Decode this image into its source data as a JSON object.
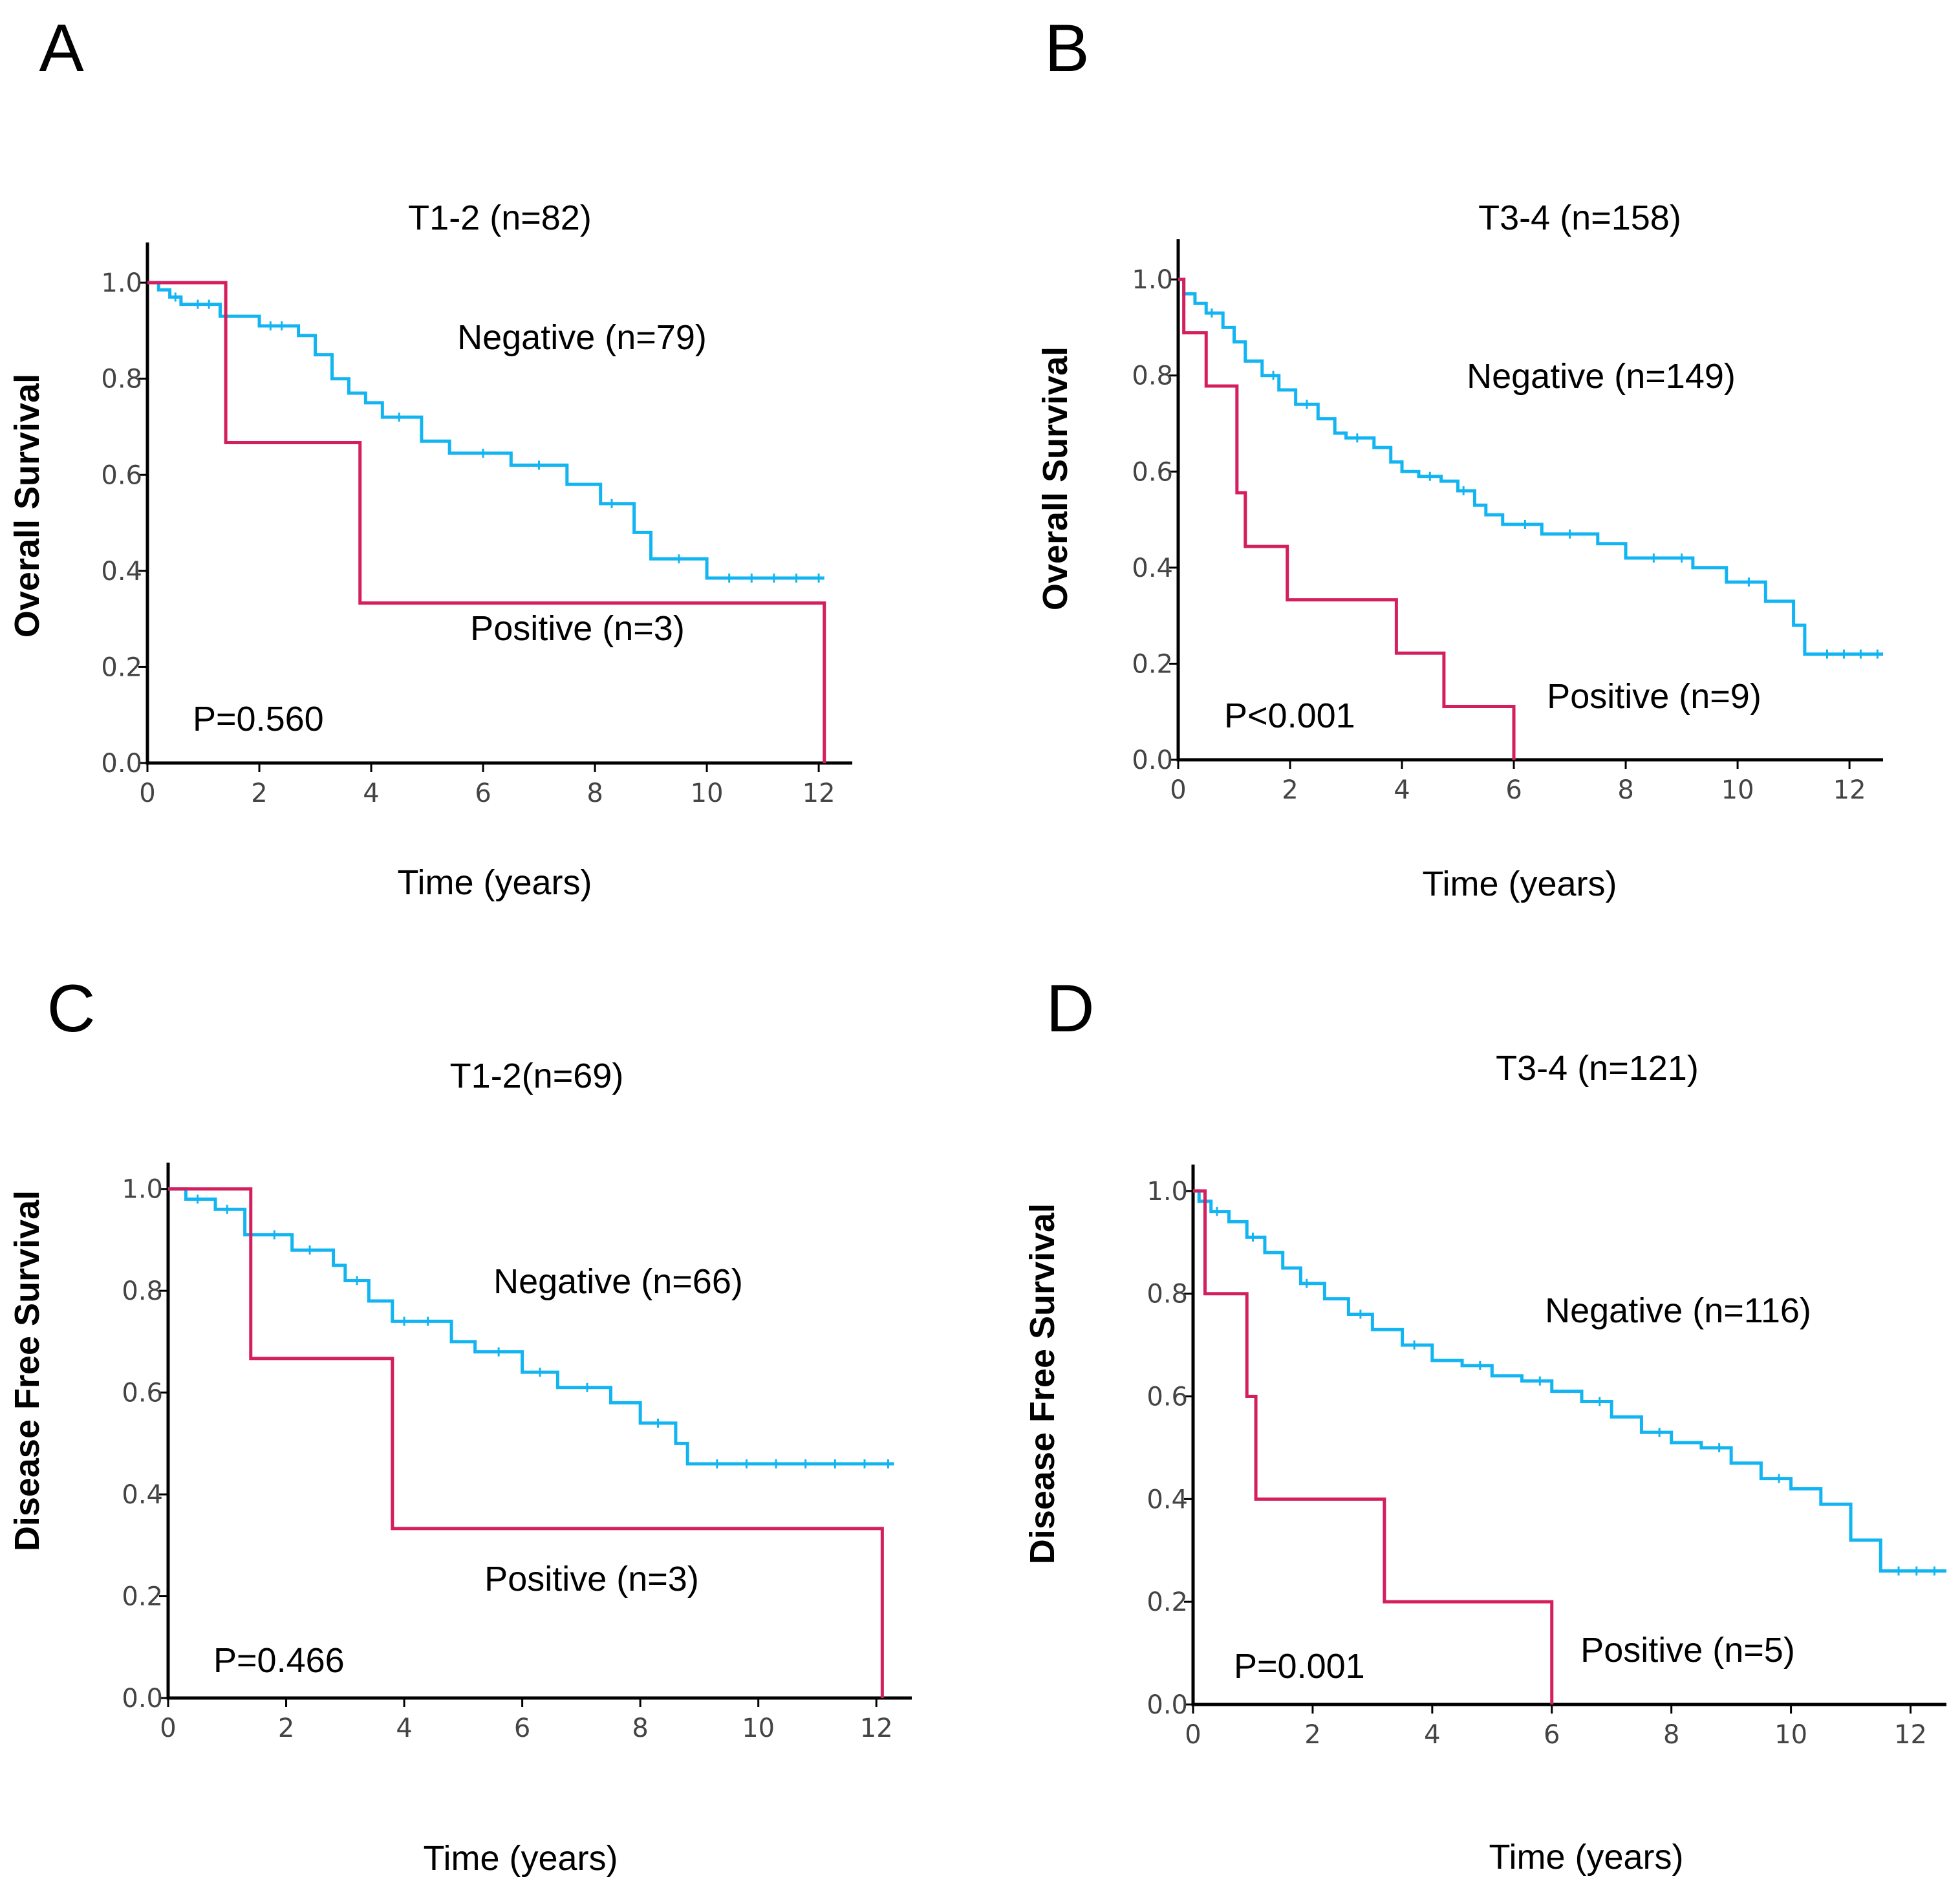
{
  "colors": {
    "negative": "#12b5f2",
    "positive": "#d41f5f"
  },
  "chart_data": [
    {
      "panel": "A",
      "type": "line",
      "title": "T1-2 (n=82)",
      "xlabel": "Time (years)",
      "ylabel": "Overall Survival",
      "xlim": [
        0,
        12.6
      ],
      "ylim": [
        0,
        1.05
      ],
      "xticks": [
        "0",
        "2",
        "4",
        "6",
        "8",
        "10",
        "12"
      ],
      "yticks": [
        "0.0",
        "0.2",
        "0.4",
        "0.6",
        "0.8",
        "1.0"
      ],
      "p_value": "P=0.560",
      "series": [
        {
          "name": "Negative (n=79)",
          "color_key": "negative",
          "x": [
            0,
            0.2,
            0.4,
            0.6,
            1.3,
            2.0,
            2.7,
            3.0,
            3.3,
            3.6,
            3.9,
            4.2,
            4.9,
            5.4,
            6.5,
            7.5,
            8.1,
            8.7,
            9.0,
            10.0,
            12.1
          ],
          "y": [
            1.0,
            0.985,
            0.97,
            0.955,
            0.93,
            0.91,
            0.89,
            0.85,
            0.8,
            0.77,
            0.75,
            0.72,
            0.67,
            0.645,
            0.62,
            0.58,
            0.54,
            0.48,
            0.425,
            0.385,
            0.385
          ],
          "censor_x": [
            0.5,
            0.9,
            1.1,
            2.2,
            2.4,
            4.5,
            6.0,
            7.0,
            8.3,
            9.5,
            10.4,
            10.8,
            11.2,
            11.6,
            12.0
          ]
        },
        {
          "name": "Positive (n=3)",
          "color_key": "positive",
          "x": [
            0,
            1.4,
            3.8,
            12.1
          ],
          "y": [
            1.0,
            0.667,
            0.333,
            0.0
          ]
        }
      ],
      "labels": {
        "negative": "Negative (n=79)",
        "positive": "Positive (n=3)"
      }
    },
    {
      "panel": "B",
      "type": "line",
      "title": "T3-4 (n=158)",
      "xlabel": "Time (years)",
      "ylabel": "Overall Survival",
      "xlim": [
        0,
        12.6
      ],
      "ylim": [
        0,
        1.05
      ],
      "xticks": [
        "0",
        "2",
        "4",
        "6",
        "8",
        "10",
        "12"
      ],
      "yticks": [
        "0.0",
        "0.2",
        "0.4",
        "0.6",
        "0.8",
        "1.0"
      ],
      "p_value": "P<0.001",
      "series": [
        {
          "name": "Negative (n=149)",
          "color_key": "negative",
          "x": [
            0,
            0.1,
            0.3,
            0.5,
            0.8,
            1.0,
            1.2,
            1.5,
            1.8,
            2.1,
            2.5,
            2.8,
            3.0,
            3.5,
            3.8,
            4.0,
            4.3,
            4.7,
            5.0,
            5.3,
            5.5,
            5.8,
            6.5,
            7.5,
            8.0,
            9.2,
            9.8,
            10.5,
            11.0,
            11.2,
            12.6
          ],
          "y": [
            1.0,
            0.97,
            0.95,
            0.93,
            0.9,
            0.87,
            0.83,
            0.8,
            0.77,
            0.74,
            0.71,
            0.68,
            0.67,
            0.65,
            0.62,
            0.6,
            0.59,
            0.58,
            0.56,
            0.53,
            0.51,
            0.49,
            0.47,
            0.45,
            0.42,
            0.4,
            0.37,
            0.33,
            0.28,
            0.22,
            0.22
          ],
          "censor_x": [
            0.6,
            1.7,
            2.3,
            3.2,
            4.5,
            5.1,
            6.2,
            7.0,
            8.5,
            9.0,
            10.2,
            11.6,
            11.9,
            12.2,
            12.5
          ]
        },
        {
          "name": "Positive (n=9)",
          "color_key": "positive",
          "x": [
            0,
            0.1,
            0.5,
            1.05,
            1.2,
            1.95,
            3.9,
            4.75,
            6.0
          ],
          "y": [
            1.0,
            0.889,
            0.778,
            0.556,
            0.444,
            0.333,
            0.222,
            0.111,
            0.0
          ]
        }
      ],
      "labels": {
        "negative": "Negative (n=149)",
        "positive": "Positive (n=9)"
      }
    },
    {
      "panel": "C",
      "type": "line",
      "title": "T1-2(n=69)",
      "xlabel": "Time (years)",
      "ylabel": "Disease Free Survival",
      "xlim": [
        0,
        12.6
      ],
      "ylim": [
        0,
        1.02
      ],
      "xticks": [
        "0",
        "2",
        "4",
        "6",
        "8",
        "10",
        "12"
      ],
      "yticks": [
        "0.0",
        "0.2",
        "0.4",
        "0.6",
        "0.8",
        "1.0"
      ],
      "p_value": "P=0.466",
      "series": [
        {
          "name": "Negative (n=66)",
          "color_key": "negative",
          "x": [
            0,
            0.3,
            0.8,
            1.3,
            2.1,
            2.8,
            3.0,
            3.4,
            3.8,
            4.8,
            5.2,
            6.0,
            6.6,
            7.5,
            8.0,
            8.6,
            8.8,
            12.3
          ],
          "y": [
            1.0,
            0.98,
            0.96,
            0.91,
            0.88,
            0.85,
            0.82,
            0.78,
            0.74,
            0.7,
            0.68,
            0.64,
            0.61,
            0.58,
            0.54,
            0.5,
            0.46,
            0.46
          ],
          "censor_x": [
            0.5,
            1.0,
            1.8,
            2.4,
            3.2,
            4.0,
            4.4,
            5.6,
            6.3,
            7.1,
            8.3,
            9.3,
            9.8,
            10.3,
            10.8,
            11.3,
            11.8,
            12.2
          ]
        },
        {
          "name": "Positive (n=3)",
          "color_key": "positive",
          "x": [
            0,
            1.4,
            3.8,
            12.1
          ],
          "y": [
            1.0,
            0.667,
            0.333,
            0.0
          ]
        }
      ],
      "labels": {
        "negative": "Negative (n=66)",
        "positive": "Positive (n=3)"
      }
    },
    {
      "panel": "D",
      "type": "line",
      "title": "T3-4 (n=121)",
      "xlabel": "Time (years)",
      "ylabel": "Disease Free Survival",
      "xlim": [
        0,
        12.6
      ],
      "ylim": [
        0,
        1.02
      ],
      "xticks": [
        "0",
        "2",
        "4",
        "6",
        "8",
        "10",
        "12"
      ],
      "yticks": [
        "0.0",
        "0.2",
        "0.4",
        "0.6",
        "0.8",
        "1.0"
      ],
      "p_value": "P=0.001",
      "series": [
        {
          "name": "Negative (n=116)",
          "color_key": "negative",
          "x": [
            0,
            0.1,
            0.3,
            0.6,
            0.9,
            1.2,
            1.5,
            1.8,
            2.2,
            2.6,
            3.0,
            3.5,
            4.0,
            4.5,
            5.0,
            5.5,
            6.0,
            6.5,
            7.0,
            7.5,
            8.0,
            8.5,
            9.0,
            9.5,
            10.0,
            10.5,
            11.0,
            11.5,
            12.6
          ],
          "y": [
            1.0,
            0.98,
            0.96,
            0.94,
            0.91,
            0.88,
            0.85,
            0.82,
            0.79,
            0.76,
            0.73,
            0.7,
            0.67,
            0.66,
            0.64,
            0.63,
            0.61,
            0.59,
            0.56,
            0.53,
            0.51,
            0.5,
            0.47,
            0.44,
            0.42,
            0.39,
            0.32,
            0.26,
            0.26
          ],
          "censor_x": [
            0.4,
            1.0,
            1.9,
            2.8,
            3.7,
            4.8,
            5.8,
            6.8,
            7.8,
            8.8,
            9.8,
            11.8,
            12.1,
            12.4
          ]
        },
        {
          "name": "Positive (n=5)",
          "color_key": "positive",
          "x": [
            0,
            0.2,
            0.9,
            1.05,
            3.2,
            6.0
          ],
          "y": [
            1.0,
            0.8,
            0.6,
            0.4,
            0.2,
            0.0
          ]
        }
      ],
      "labels": {
        "negative": "Negative (n=116)",
        "positive": "Positive (n=5)"
      }
    }
  ]
}
